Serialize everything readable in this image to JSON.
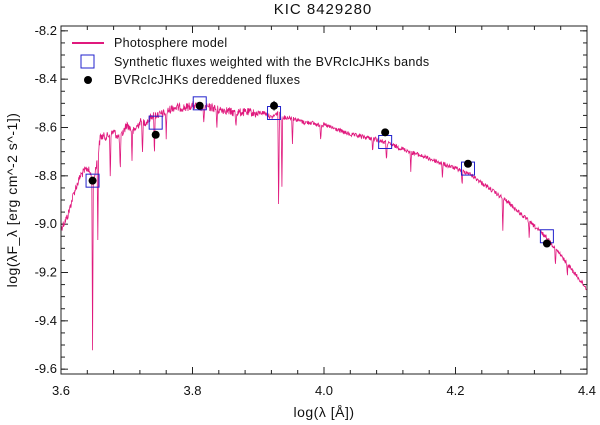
{
  "chart_data": {
    "type": "line",
    "title": "KIC 8429280",
    "xlabel": "log(λ [Å])",
    "ylabel": "log(λF_λ [erg cm^-2 s^-1])",
    "xlim": [
      3.6,
      4.4
    ],
    "ylim": [
      -9.62,
      -8.18
    ],
    "x_ticks": [
      "3.6",
      "3.8",
      "4.0",
      "4.2",
      "4.4"
    ],
    "y_ticks": [
      "-8.2",
      "-8.4",
      "-8.6",
      "-8.8",
      "-9.0",
      "-9.2",
      "-9.4",
      "-9.6"
    ],
    "x_tick_values": [
      3.6,
      3.8,
      4.0,
      4.2,
      4.4
    ],
    "y_tick_values": [
      -8.2,
      -8.4,
      -8.6,
      -8.8,
      -9.0,
      -9.2,
      -9.4,
      -9.6
    ],
    "legend": {
      "placement": "top-left",
      "entries": [
        {
          "label": "Photosphere model",
          "symbol": "line",
          "color": "#e0197d"
        },
        {
          "label": "Synthetic fluxes weighted with the BVRcIcJHKs bands",
          "symbol": "open-square",
          "color": "#2222cc"
        },
        {
          "label": "BVRcIcJHKs dereddened fluxes",
          "symbol": "filled-circle",
          "color": "#000000"
        }
      ]
    },
    "series": [
      {
        "name": "Photosphere model",
        "kind": "line",
        "color": "#e0197d",
        "x": [
          3.6,
          3.61,
          3.62,
          3.63,
          3.64,
          3.65,
          3.66,
          3.67,
          3.68,
          3.69,
          3.7,
          3.71,
          3.72,
          3.73,
          3.74,
          3.75,
          3.76,
          3.77,
          3.78,
          3.79,
          3.8,
          3.81,
          3.82,
          3.83,
          3.84,
          3.85,
          3.86,
          3.87,
          3.88,
          3.89,
          3.9,
          3.91,
          3.92,
          3.93,
          3.94,
          3.95,
          3.96,
          3.97,
          3.98,
          3.99,
          4.0,
          4.02,
          4.04,
          4.06,
          4.08,
          4.1,
          4.12,
          4.14,
          4.16,
          4.18,
          4.2,
          4.22,
          4.24,
          4.26,
          4.28,
          4.3,
          4.32,
          4.34,
          4.36,
          4.38,
          4.4
        ],
        "y": [
          -9.0,
          -8.95,
          -8.85,
          -8.78,
          -8.75,
          -8.8,
          -8.62,
          -8.62,
          -8.6,
          -8.63,
          -8.57,
          -8.6,
          -8.56,
          -8.56,
          -8.53,
          -8.53,
          -8.52,
          -8.5,
          -8.5,
          -8.5,
          -8.49,
          -8.5,
          -8.5,
          -8.5,
          -8.51,
          -8.51,
          -8.52,
          -8.52,
          -8.52,
          -8.52,
          -8.53,
          -8.53,
          -8.55,
          -8.53,
          -8.55,
          -8.55,
          -8.56,
          -8.57,
          -8.57,
          -8.58,
          -8.58,
          -8.6,
          -8.62,
          -8.63,
          -8.64,
          -8.66,
          -8.68,
          -8.7,
          -8.72,
          -8.74,
          -8.76,
          -8.78,
          -8.82,
          -8.86,
          -8.9,
          -8.95,
          -9.0,
          -9.05,
          -9.12,
          -9.19,
          -9.26
        ]
      },
      {
        "name": "Synthetic fluxes weighted with the BVRcIcJHKs bands",
        "kind": "open-square",
        "color": "#2222cc",
        "x": [
          3.648,
          3.744,
          3.811,
          3.924,
          4.093,
          4.219,
          4.339
        ],
        "y": [
          -8.82,
          -8.58,
          -8.5,
          -8.54,
          -8.66,
          -8.77,
          -9.05
        ]
      },
      {
        "name": "BVRcIcJHKs dereddened fluxes",
        "kind": "filled-circle",
        "color": "#000000",
        "x": [
          3.648,
          3.744,
          3.811,
          3.924,
          4.093,
          4.219,
          4.339
        ],
        "y": [
          -8.82,
          -8.63,
          -8.51,
          -8.51,
          -8.62,
          -8.75,
          -9.08
        ],
        "yerr": [
          0.01,
          0.01,
          0.01,
          0.02,
          0.01,
          0.01,
          0.01
        ]
      }
    ],
    "absorption_lines": [
      {
        "x": 3.648,
        "depth": 0.7
      },
      {
        "x": 3.656,
        "depth": 0.35
      },
      {
        "x": 3.675,
        "depth": 0.18
      },
      {
        "x": 3.69,
        "depth": 0.15
      },
      {
        "x": 3.708,
        "depth": 0.12
      },
      {
        "x": 3.724,
        "depth": 0.14
      },
      {
        "x": 3.742,
        "depth": 0.18
      },
      {
        "x": 3.76,
        "depth": 0.1
      },
      {
        "x": 3.817,
        "depth": 0.08
      },
      {
        "x": 3.837,
        "depth": 0.08
      },
      {
        "x": 3.866,
        "depth": 0.06
      },
      {
        "x": 3.931,
        "depth": 0.42
      },
      {
        "x": 3.936,
        "depth": 0.3
      },
      {
        "x": 3.952,
        "depth": 0.1
      },
      {
        "x": 3.995,
        "depth": 0.06
      },
      {
        "x": 4.074,
        "depth": 0.06
      },
      {
        "x": 4.095,
        "depth": 0.08
      },
      {
        "x": 4.132,
        "depth": 0.08
      },
      {
        "x": 4.18,
        "depth": 0.06
      },
      {
        "x": 4.21,
        "depth": 0.07
      },
      {
        "x": 4.272,
        "depth": 0.14
      },
      {
        "x": 4.312,
        "depth": 0.06
      },
      {
        "x": 4.352,
        "depth": 0.07
      },
      {
        "x": 4.37,
        "depth": 0.05
      }
    ]
  }
}
